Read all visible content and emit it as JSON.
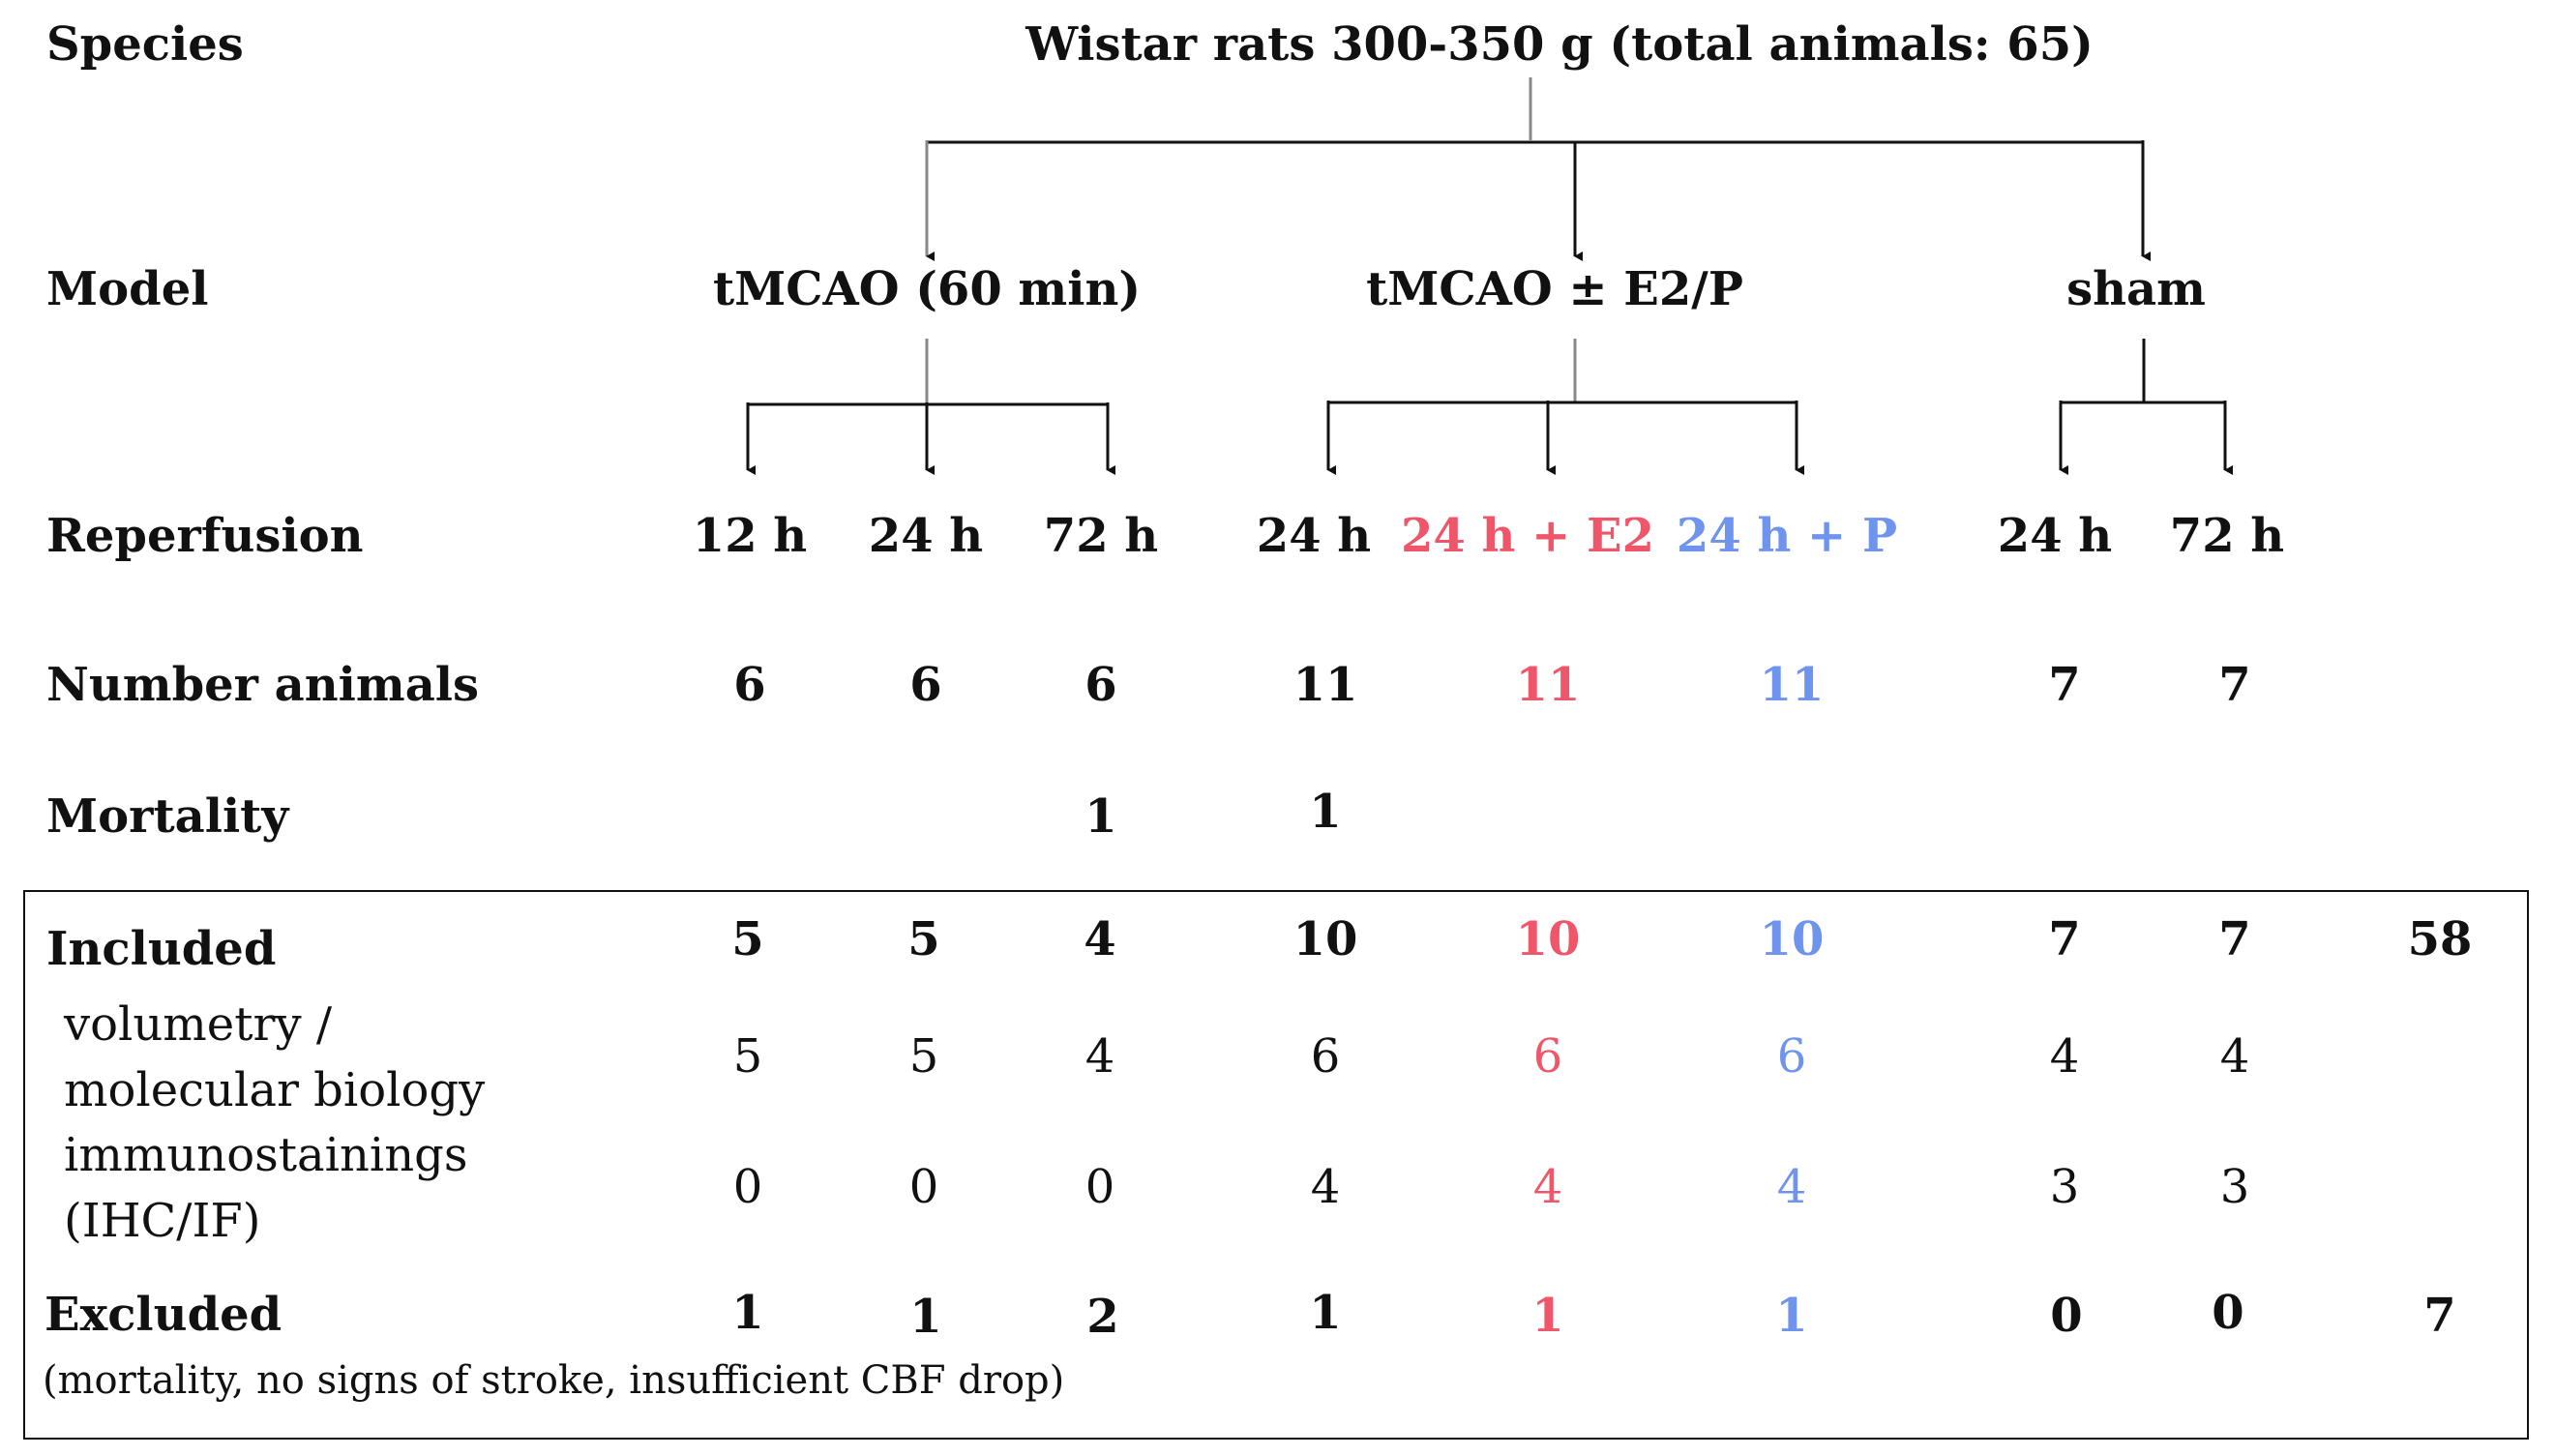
{
  "row_labels": {
    "species": "Species",
    "model": "Model",
    "reperfusion": "Reperfusion",
    "number_animals": "Number animals",
    "mortality": "Mortality",
    "included": "Included",
    "volumetry_line1": "volumetry /",
    "volumetry_line2": "molecular biology",
    "immuno_line1": "immunostainings",
    "immuno_line2": "(IHC/IF)",
    "excluded": "Excluded",
    "excluded_note": "(mortality, no signs of stroke, insufficient CBF drop)"
  },
  "species": "Wistar rats 300-350 g (total animals: 65)",
  "models": [
    "tMCAO (60 min)",
    "tMCAO ± E2/P",
    "sham"
  ],
  "reperfusion": [
    "12 h",
    "24 h",
    "72 h",
    "24 h",
    "24 h + E2",
    "24 h + P",
    "24 h",
    "72 h"
  ],
  "number_animals": [
    "6",
    "6",
    "6",
    "11",
    "11",
    "11",
    "7",
    "7"
  ],
  "mortality": [
    "",
    "",
    "1",
    "1",
    "",
    "",
    "",
    ""
  ],
  "included": [
    "5",
    "5",
    "4",
    "10",
    "10",
    "10",
    "7",
    "7",
    "58"
  ],
  "volumetry": [
    "5",
    "5",
    "4",
    "6",
    "6",
    "6",
    "4",
    "4"
  ],
  "immunostainings": [
    "0",
    "0",
    "0",
    "4",
    "4",
    "4",
    "3",
    "3"
  ],
  "excluded": [
    "1",
    "1",
    "2",
    "1",
    "1",
    "1",
    "0",
    "0",
    "7"
  ],
  "colors": {
    "e2": "#f0566a",
    "p": "#6f94ee",
    "text": "#111111"
  }
}
